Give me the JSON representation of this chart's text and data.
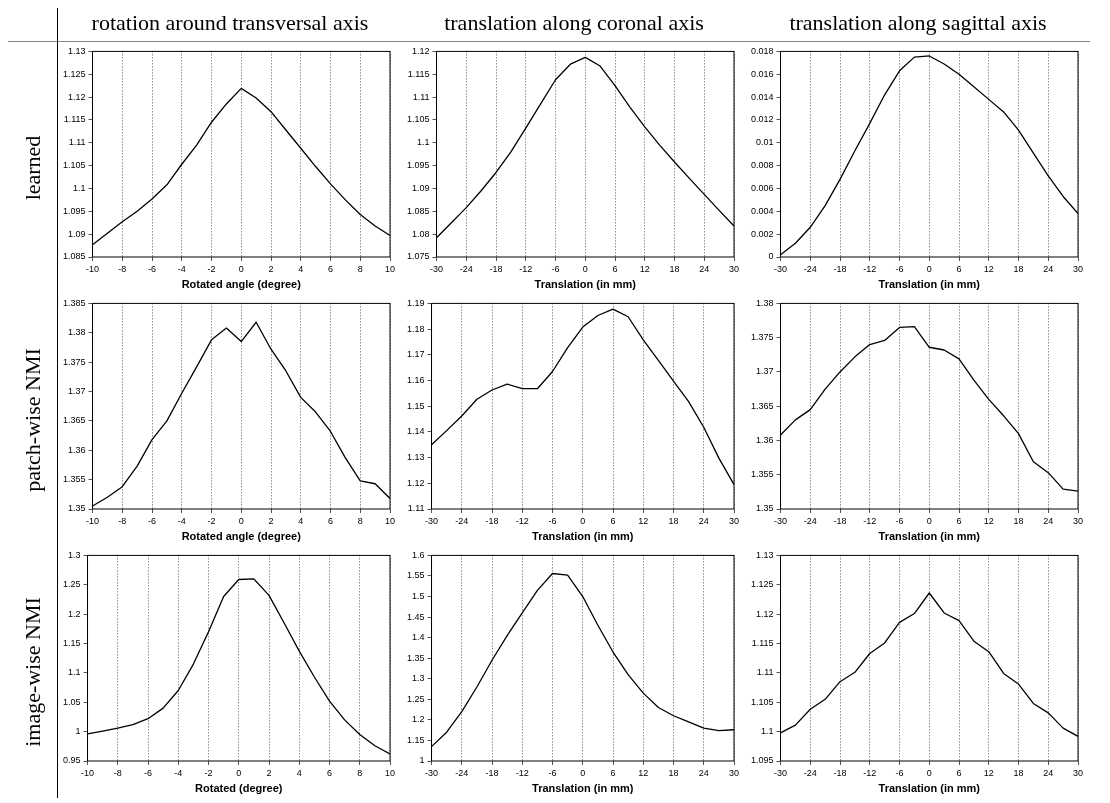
{
  "chart_data": [
    {
      "type": "line",
      "title": "rotation around transversal axis",
      "ylabel": "learned",
      "xlabel": "Rotated angle (degree)",
      "color": "#000000",
      "grid": "x",
      "line_style": "solid",
      "x": [
        -10,
        -9,
        -8,
        -7,
        -6,
        -5,
        -4,
        -3,
        -2,
        -1,
        0,
        1,
        2,
        3,
        4,
        5,
        6,
        7,
        8,
        9,
        10
      ],
      "xlim": [
        -10,
        10
      ],
      "xticks": [
        -10,
        -8,
        -6,
        -4,
        -2,
        0,
        2,
        4,
        6,
        8,
        10
      ],
      "ylim": [
        1.085,
        1.13
      ],
      "yticks": [
        1.085,
        1.09,
        1.095,
        1.1,
        1.105,
        1.11,
        1.115,
        1.12,
        1.125,
        1.13
      ],
      "values": [
        1.0877,
        1.0902,
        1.0927,
        1.095,
        1.0977,
        1.1008,
        1.1053,
        1.1095,
        1.1145,
        1.1185,
        1.1219,
        1.1198,
        1.1168,
        1.1128,
        1.1088,
        1.1048,
        1.101,
        1.0975,
        1.0943,
        1.0918,
        1.0897
      ]
    },
    {
      "type": "line",
      "title": "translation along coronal axis",
      "xlabel": "Translation (in mm)",
      "color": "#000000",
      "grid": "x",
      "line_style": "solid",
      "x": [
        -30,
        -27,
        -24,
        -21,
        -18,
        -15,
        -12,
        -9,
        -6,
        -3,
        0,
        3,
        6,
        9,
        12,
        15,
        18,
        21,
        24,
        27,
        30
      ],
      "xlim": [
        -30,
        30
      ],
      "xticks": [
        -30,
        -24,
        -18,
        -12,
        -6,
        0,
        6,
        12,
        18,
        24,
        30
      ],
      "ylim": [
        1.075,
        1.12
      ],
      "yticks": [
        1.075,
        1.08,
        1.085,
        1.09,
        1.095,
        1.1,
        1.105,
        1.11,
        1.115,
        1.12
      ],
      "values": [
        1.0792,
        1.0825,
        1.0858,
        1.0895,
        1.0935,
        1.098,
        1.1032,
        1.1085,
        1.1138,
        1.1172,
        1.1187,
        1.1168,
        1.1125,
        1.1078,
        1.1035,
        1.0995,
        1.0958,
        1.0922,
        1.0887,
        1.0852,
        1.0818
      ]
    },
    {
      "type": "line",
      "title": "translation along sagittal axis",
      "xlabel": "Translation (in mm)",
      "color": "#000000",
      "grid": "x",
      "line_style": "solid",
      "x": [
        -30,
        -27,
        -24,
        -21,
        -18,
        -15,
        -12,
        -9,
        -6,
        -3,
        0,
        3,
        6,
        9,
        12,
        15,
        18,
        21,
        24,
        27,
        30
      ],
      "xlim": [
        -30,
        30
      ],
      "xticks": [
        -30,
        -24,
        -18,
        -12,
        -6,
        0,
        6,
        12,
        18,
        24,
        30
      ],
      "ylim": [
        0,
        0.018
      ],
      "yticks": [
        0,
        0.002,
        0.004,
        0.006,
        0.008,
        0.01,
        0.012,
        0.014,
        0.016,
        0.018
      ],
      "values": [
        0.0002,
        0.0012,
        0.0026,
        0.0045,
        0.0068,
        0.0093,
        0.0117,
        0.0142,
        0.0163,
        0.0175,
        0.0176,
        0.0169,
        0.016,
        0.0149,
        0.0138,
        0.0127,
        0.0111,
        0.0091,
        0.0071,
        0.0053,
        0.0038
      ]
    },
    {
      "type": "line",
      "ylabel": "patch-wise NMI",
      "xlabel": "Rotated angle (degree)",
      "color": "#000000",
      "grid": "x",
      "line_style": "solid",
      "x": [
        -10,
        -9,
        -8,
        -7,
        -6,
        -5,
        -4,
        -3,
        -2,
        -1,
        0,
        1,
        2,
        3,
        4,
        5,
        6,
        7,
        8,
        9,
        10
      ],
      "xlim": [
        -10,
        10
      ],
      "xticks": [
        -10,
        -8,
        -6,
        -4,
        -2,
        0,
        2,
        4,
        6,
        8,
        10
      ],
      "ylim": [
        1.35,
        1.385
      ],
      "yticks": [
        1.35,
        1.355,
        1.36,
        1.365,
        1.37,
        1.375,
        1.38,
        1.385
      ],
      "values": [
        1.3505,
        1.352,
        1.3538,
        1.3573,
        1.3618,
        1.365,
        1.3697,
        1.3742,
        1.3788,
        1.3808,
        1.3785,
        1.3818,
        1.3772,
        1.3735,
        1.369,
        1.3665,
        1.3632,
        1.3587,
        1.3548,
        1.3543,
        1.3518
      ]
    },
    {
      "type": "line",
      "xlabel": "Translation (in mm)",
      "color": "#000000",
      "grid": "x",
      "line_style": "solid",
      "x": [
        -30,
        -27,
        -24,
        -21,
        -18,
        -15,
        -12,
        -9,
        -6,
        -3,
        0,
        3,
        6,
        9,
        12,
        15,
        18,
        21,
        24,
        27,
        30
      ],
      "xlim": [
        -30,
        30
      ],
      "xticks": [
        -30,
        -24,
        -18,
        -12,
        -6,
        0,
        6,
        12,
        18,
        24,
        30
      ],
      "ylim": [
        1.11,
        1.19
      ],
      "yticks": [
        1.11,
        1.12,
        1.13,
        1.14,
        1.15,
        1.16,
        1.17,
        1.18,
        1.19
      ],
      "values": [
        1.135,
        1.1405,
        1.1462,
        1.1527,
        1.1563,
        1.1586,
        1.1568,
        1.1568,
        1.1635,
        1.1728,
        1.1808,
        1.1853,
        1.1878,
        1.1848,
        1.1758,
        1.1678,
        1.1598,
        1.1518,
        1.1418,
        1.1298,
        1.1195
      ]
    },
    {
      "type": "line",
      "xlabel": "Translation (in mm)",
      "color": "#000000",
      "grid": "x",
      "line_style": "solid",
      "x": [
        -30,
        -27,
        -24,
        -21,
        -18,
        -15,
        -12,
        -9,
        -6,
        -3,
        0,
        3,
        6,
        9,
        12,
        15,
        18,
        21,
        24,
        27,
        30
      ],
      "xlim": [
        -30,
        30
      ],
      "xticks": [
        -30,
        -24,
        -18,
        -12,
        -6,
        0,
        6,
        12,
        18,
        24,
        30
      ],
      "ylim": [
        1.35,
        1.38
      ],
      "yticks": [
        1.35,
        1.355,
        1.36,
        1.365,
        1.37,
        1.375,
        1.38
      ],
      "values": [
        1.3608,
        1.363,
        1.3645,
        1.3675,
        1.37,
        1.3722,
        1.374,
        1.3746,
        1.3765,
        1.3766,
        1.3736,
        1.3732,
        1.3719,
        1.3688,
        1.366,
        1.3636,
        1.361,
        1.3569,
        1.3553,
        1.3529,
        1.3526
      ]
    },
    {
      "type": "line",
      "ylabel": "image-wise NMI",
      "xlabel": "Rotated (degree)",
      "color": "#000000",
      "grid": "x",
      "line_style": "solid",
      "x": [
        -10,
        -9,
        -8,
        -7,
        -6,
        -5,
        -4,
        -3,
        -2,
        -1,
        0,
        1,
        2,
        3,
        4,
        5,
        6,
        7,
        8,
        9,
        10
      ],
      "xlim": [
        -10,
        10
      ],
      "xticks": [
        -10,
        -8,
        -6,
        -4,
        -2,
        0,
        2,
        4,
        6,
        8,
        10
      ],
      "ylim": [
        0.95,
        1.3
      ],
      "yticks": [
        0.95,
        1,
        1.05,
        1.1,
        1.15,
        1.2,
        1.25,
        1.3
      ],
      "values": [
        0.996,
        1.001,
        1.006,
        1.012,
        1.022,
        1.04,
        1.07,
        1.115,
        1.17,
        1.23,
        1.259,
        1.26,
        1.232,
        1.185,
        1.137,
        1.093,
        1.052,
        1.02,
        0.995,
        0.976,
        0.962
      ]
    },
    {
      "type": "line",
      "xlabel": "Translation (in mm)",
      "color": "#000000",
      "grid": "x",
      "line_style": "solid",
      "x": [
        -30,
        -27,
        -24,
        -21,
        -18,
        -15,
        -12,
        -9,
        -6,
        -3,
        0,
        3,
        6,
        9,
        12,
        15,
        18,
        21,
        24,
        27,
        30
      ],
      "xlim": [
        -30,
        30
      ],
      "xticks": [
        -30,
        -24,
        -18,
        -12,
        -6,
        0,
        6,
        12,
        18,
        24,
        30
      ],
      "ylim": [
        1.1,
        1.6
      ],
      "yticks": [
        {
          "value": 1.1,
          "label": "1"
        },
        1.15,
        1.2,
        1.25,
        1.3,
        1.35,
        1.4,
        1.45,
        1.5,
        1.55,
        1.6
      ],
      "values": [
        1.135,
        1.17,
        1.22,
        1.28,
        1.345,
        1.405,
        1.46,
        1.515,
        1.556,
        1.552,
        1.5,
        1.43,
        1.365,
        1.31,
        1.265,
        1.23,
        1.21,
        1.195,
        1.18,
        1.174,
        1.176
      ]
    },
    {
      "type": "line",
      "xlabel": "Translation (in mm)",
      "color": "#000000",
      "grid": "x",
      "line_style": "solid",
      "x": [
        -30,
        -27,
        -24,
        -21,
        -18,
        -15,
        -12,
        -9,
        -6,
        -3,
        0,
        3,
        6,
        9,
        12,
        15,
        18,
        21,
        24,
        27,
        30
      ],
      "xlim": [
        -30,
        30
      ],
      "xticks": [
        -30,
        -24,
        -18,
        -12,
        -6,
        0,
        6,
        12,
        18,
        24,
        30
      ],
      "ylim": [
        1.095,
        1.13
      ],
      "yticks": [
        1.095,
        1.1,
        1.105,
        1.11,
        1.115,
        1.12,
        1.125,
        1.13
      ],
      "values": [
        1.0998,
        1.1011,
        1.1038,
        1.1055,
        1.1085,
        1.1101,
        1.1133,
        1.1151,
        1.1186,
        1.1201,
        1.1236,
        1.1202,
        1.1189,
        1.1154,
        1.1136,
        1.1099,
        1.1081,
        1.1048,
        1.1032,
        1.1006,
        1.0992
      ]
    }
  ]
}
